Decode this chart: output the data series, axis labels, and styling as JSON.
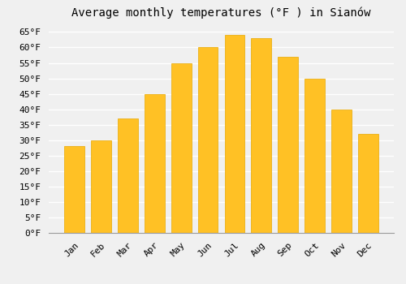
{
  "title": "Average monthly temperatures (°F ) in Sianów",
  "months": [
    "Jan",
    "Feb",
    "Mar",
    "Apr",
    "May",
    "Jun",
    "Jul",
    "Aug",
    "Sep",
    "Oct",
    "Nov",
    "Dec"
  ],
  "values": [
    28,
    30,
    37,
    45,
    55,
    60,
    64,
    63,
    57,
    50,
    40,
    32
  ],
  "bar_color": "#FFC125",
  "bar_edge_color": "#E8A800",
  "background_color": "#F0F0F0",
  "grid_color": "#FFFFFF",
  "ylim": [
    0,
    68
  ],
  "yticks": [
    0,
    5,
    10,
    15,
    20,
    25,
    30,
    35,
    40,
    45,
    50,
    55,
    60,
    65
  ],
  "ylabel_suffix": "°F",
  "title_fontsize": 10,
  "tick_fontsize": 8,
  "font_family": "monospace"
}
